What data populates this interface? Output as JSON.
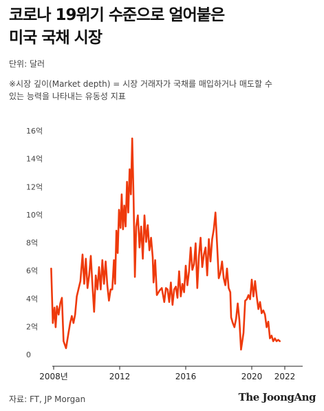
{
  "header": {
    "title_line1": "코로나 19위기 수준으로 얼어붙은",
    "title_line2": "미국 국채 시장",
    "unit_label": "단위: 달러",
    "note_line1": "※시장 깊이(Market depth) = 시장 거래자가 국채를 매입하거나 매도할 수",
    "note_line2": "있는 능력을 나타내는 유동성 지표"
  },
  "footer": {
    "source": "자료: FT, JP Morgan",
    "brand": "The JoongAng"
  },
  "colors": {
    "line": "#ee3a0c",
    "axis": "#222222",
    "text": "#444444"
  },
  "chart_data": {
    "type": "line",
    "title": "코로나 19위기 수준으로 얼어붙은 미국 국채 시장",
    "ylabel": "",
    "xlabel": "",
    "grid": false,
    "ylim": [
      0,
      16
    ],
    "xlim": [
      2006.5,
      2024.0
    ],
    "y_ticks": [
      0,
      2,
      4,
      6,
      8,
      10,
      12,
      14,
      16
    ],
    "y_tick_labels": [
      "0",
      "2억",
      "4억",
      "6억",
      "8억",
      "10억",
      "12억",
      "14억",
      "16억"
    ],
    "x_ticks": [
      2008,
      2012,
      2016,
      2020,
      2022
    ],
    "x_tick_labels": [
      "2008년",
      "2012",
      "2016",
      "2020",
      "2022"
    ],
    "series": [
      {
        "name": "",
        "color": "#ee3a0c",
        "points": [
          [
            2007.85,
            6.5
          ],
          [
            2007.95,
            2.6
          ],
          [
            2008.05,
            3.7
          ],
          [
            2008.12,
            2.3
          ],
          [
            2008.2,
            3.8
          ],
          [
            2008.3,
            3.2
          ],
          [
            2008.4,
            4.0
          ],
          [
            2008.5,
            4.4
          ],
          [
            2008.6,
            1.3
          ],
          [
            2008.75,
            0.8
          ],
          [
            2008.9,
            1.9
          ],
          [
            2009.0,
            2.6
          ],
          [
            2009.1,
            3.1
          ],
          [
            2009.2,
            2.6
          ],
          [
            2009.3,
            3.2
          ],
          [
            2009.4,
            4.5
          ],
          [
            2009.5,
            5.0
          ],
          [
            2009.62,
            5.6
          ],
          [
            2009.75,
            7.5
          ],
          [
            2009.85,
            5.4
          ],
          [
            2009.95,
            7.2
          ],
          [
            2010.05,
            5.1
          ],
          [
            2010.15,
            6.0
          ],
          [
            2010.25,
            7.4
          ],
          [
            2010.35,
            5.3
          ],
          [
            2010.45,
            3.4
          ],
          [
            2010.55,
            6.0
          ],
          [
            2010.65,
            5.0
          ],
          [
            2010.75,
            6.6
          ],
          [
            2010.85,
            5.0
          ],
          [
            2010.95,
            7.1
          ],
          [
            2011.05,
            5.4
          ],
          [
            2011.15,
            7.0
          ],
          [
            2011.25,
            5.3
          ],
          [
            2011.35,
            4.2
          ],
          [
            2011.45,
            5.0
          ],
          [
            2011.55,
            5.0
          ],
          [
            2011.65,
            7.1
          ],
          [
            2011.72,
            5.4
          ],
          [
            2011.8,
            9.2
          ],
          [
            2011.88,
            7.6
          ],
          [
            2011.96,
            10.7
          ],
          [
            2012.05,
            9.4
          ],
          [
            2012.12,
            11.8
          ],
          [
            2012.2,
            9.3
          ],
          [
            2012.28,
            11.0
          ],
          [
            2012.36,
            9.5
          ],
          [
            2012.44,
            12.7
          ],
          [
            2012.52,
            10.5
          ],
          [
            2012.6,
            13.6
          ],
          [
            2012.68,
            11.8
          ],
          [
            2012.76,
            15.8
          ],
          [
            2012.84,
            11.5
          ],
          [
            2012.92,
            5.9
          ],
          [
            2013.0,
            9.5
          ],
          [
            2013.1,
            10.3
          ],
          [
            2013.2,
            8.0
          ],
          [
            2013.3,
            9.5
          ],
          [
            2013.4,
            7.2
          ],
          [
            2013.5,
            10.3
          ],
          [
            2013.6,
            8.4
          ],
          [
            2013.7,
            9.6
          ],
          [
            2013.8,
            7.8
          ],
          [
            2013.9,
            8.7
          ],
          [
            2014.0,
            7.3
          ],
          [
            2014.05,
            5.5
          ],
          [
            2014.15,
            7.1
          ],
          [
            2014.25,
            4.6
          ],
          [
            2014.4,
            4.9
          ],
          [
            2014.55,
            5.1
          ],
          [
            2014.7,
            4.1
          ],
          [
            2014.8,
            5.1
          ],
          [
            2014.9,
            5.0
          ],
          [
            2015.0,
            4.1
          ],
          [
            2015.1,
            5.5
          ],
          [
            2015.2,
            3.9
          ],
          [
            2015.3,
            5.0
          ],
          [
            2015.4,
            5.2
          ],
          [
            2015.5,
            4.4
          ],
          [
            2015.6,
            6.3
          ],
          [
            2015.7,
            4.5
          ],
          [
            2015.8,
            5.4
          ],
          [
            2015.9,
            4.8
          ],
          [
            2016.0,
            6.7
          ],
          [
            2016.1,
            5.3
          ],
          [
            2016.2,
            6.3
          ],
          [
            2016.3,
            8.0
          ],
          [
            2016.4,
            6.4
          ],
          [
            2016.5,
            6.8
          ],
          [
            2016.6,
            8.3
          ],
          [
            2016.7,
            5.1
          ],
          [
            2016.8,
            7.4
          ],
          [
            2016.9,
            8.7
          ],
          [
            2017.0,
            6.6
          ],
          [
            2017.1,
            7.5
          ],
          [
            2017.2,
            8.0
          ],
          [
            2017.3,
            6.0
          ],
          [
            2017.4,
            8.6
          ],
          [
            2017.5,
            7.0
          ],
          [
            2017.6,
            8.6
          ],
          [
            2017.7,
            9.3
          ],
          [
            2017.8,
            10.5
          ],
          [
            2017.9,
            8.2
          ],
          [
            2018.0,
            5.8
          ],
          [
            2018.1,
            6.2
          ],
          [
            2018.2,
            7.0
          ],
          [
            2018.3,
            5.8
          ],
          [
            2018.4,
            5.3
          ],
          [
            2018.5,
            6.5
          ],
          [
            2018.6,
            5.1
          ],
          [
            2018.7,
            4.8
          ],
          [
            2018.75,
            3.0
          ],
          [
            2018.85,
            2.6
          ],
          [
            2018.95,
            2.3
          ],
          [
            2019.05,
            2.9
          ],
          [
            2019.15,
            4.0
          ],
          [
            2019.25,
            2.8
          ],
          [
            2019.35,
            0.7
          ],
          [
            2019.5,
            1.9
          ],
          [
            2019.6,
            4.2
          ],
          [
            2019.7,
            4.3
          ],
          [
            2019.8,
            4.6
          ],
          [
            2019.9,
            4.3
          ],
          [
            2020.0,
            5.7
          ],
          [
            2020.1,
            4.5
          ],
          [
            2020.2,
            5.6
          ],
          [
            2020.3,
            4.5
          ],
          [
            2020.4,
            3.6
          ],
          [
            2020.5,
            4.1
          ],
          [
            2020.6,
            3.3
          ],
          [
            2020.7,
            3.5
          ],
          [
            2020.8,
            3.2
          ],
          [
            2020.9,
            2.3
          ],
          [
            2021.0,
            2.7
          ],
          [
            2021.1,
            1.5
          ],
          [
            2021.2,
            1.7
          ],
          [
            2021.3,
            1.3
          ],
          [
            2021.4,
            1.5
          ],
          [
            2021.5,
            1.3
          ],
          [
            2021.6,
            1.4
          ],
          [
            2021.7,
            1.3
          ]
        ]
      }
    ]
  }
}
